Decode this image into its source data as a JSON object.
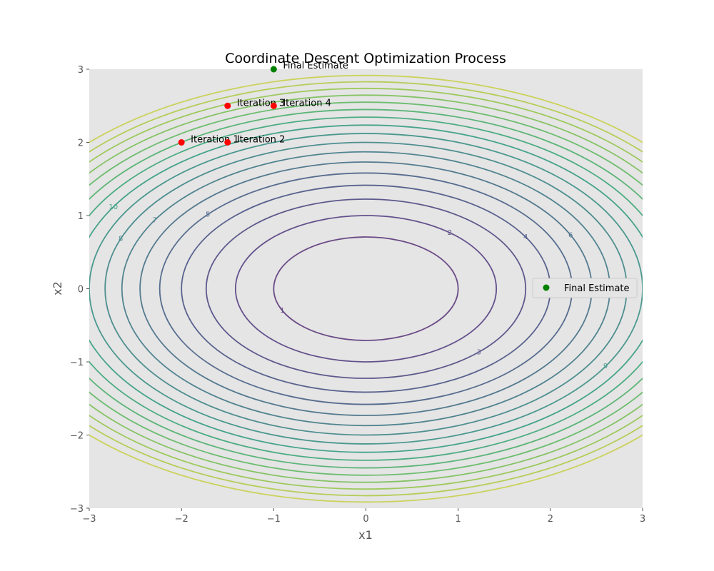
{
  "chart_data": {
    "type": "contour",
    "title": "Coordinate Descent Optimization Process",
    "xlabel": "x1",
    "ylabel": "x2",
    "xlim": [
      -3,
      3
    ],
    "ylim": [
      -3,
      3
    ],
    "xticks": [
      "−3",
      "−2",
      "−1",
      "0",
      "1",
      "2",
      "3"
    ],
    "yticks": [
      "−3",
      "−2",
      "−1",
      "0",
      "1",
      "2",
      "3"
    ],
    "grid": false,
    "background": "#e5e5e5",
    "function": "x1^2 + 2*x2^2",
    "contour_levels": [
      1,
      2,
      3,
      4,
      5,
      6,
      7,
      8,
      9,
      10,
      11,
      12,
      13,
      14,
      15,
      16,
      17
    ],
    "contour_colors": [
      "#6a4a86",
      "#64518c",
      "#5d598c",
      "#59628e",
      "#576d8f",
      "#547a8f",
      "#518490",
      "#4e8e8f",
      "#4a988e",
      "#45a38a",
      "#4cac83",
      "#5cb578",
      "#6dbd6f",
      "#85c365",
      "#9dc95c",
      "#b5cd57",
      "#cbd25a"
    ],
    "iterations": [
      {
        "label": "Iteration 1",
        "x": -2,
        "y": 2
      },
      {
        "label": "Iteration 2",
        "x": -1.5,
        "y": 2
      },
      {
        "label": "Iteration 3",
        "x": -1.5,
        "y": 2.5
      },
      {
        "label": "Iteration 4",
        "x": -1,
        "y": 2.5
      }
    ],
    "iteration_color": "#ff0000",
    "final": {
      "label": "Final Estimate",
      "x": -1,
      "y": 3
    },
    "final_color": "#008000",
    "legend": {
      "position": "right",
      "entries": [
        "Final Estimate"
      ]
    }
  }
}
